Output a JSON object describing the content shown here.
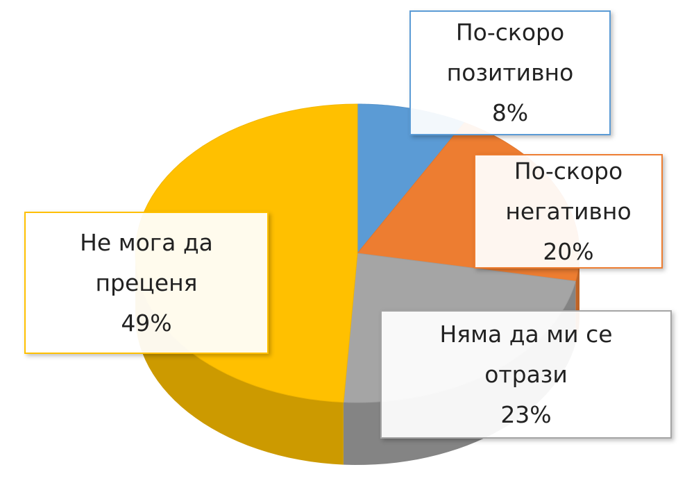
{
  "chart_data": {
    "type": "pie3d",
    "categories": [
      "По-скоро позитивно",
      "По-скоро негативно",
      "Няма да ми се отрази",
      "Не мога да преценя"
    ],
    "values": [
      8,
      20,
      23,
      49
    ],
    "value_labels": [
      "8%",
      "20%",
      "23%",
      "49%"
    ],
    "colors": [
      "#5b9bd5",
      "#ed7d31",
      "#a5a5a5",
      "#ffc000"
    ]
  }
}
